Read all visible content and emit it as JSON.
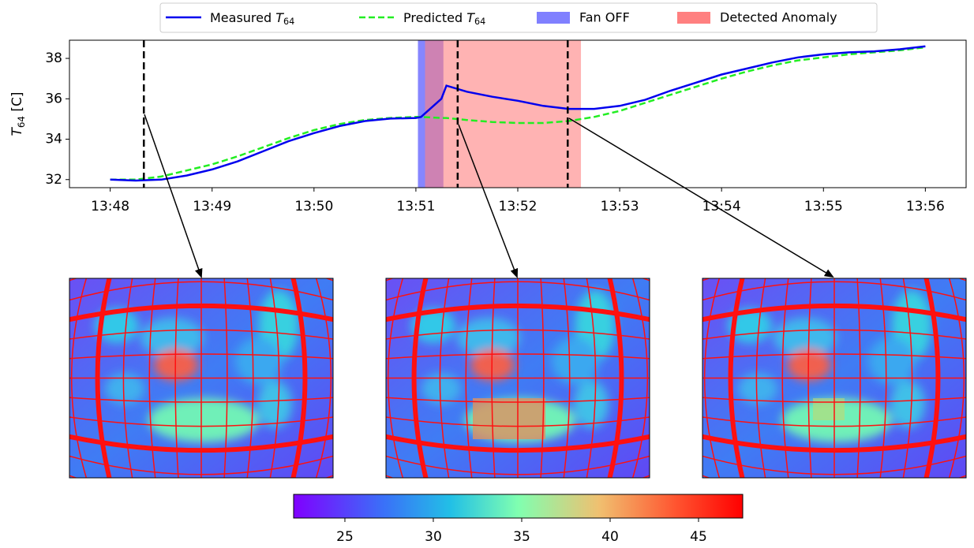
{
  "chart_data": {
    "type": "line",
    "ylabel": "T64 [C]",
    "x": [
      828,
      828.25,
      828.5,
      828.75,
      829,
      829.25,
      829.5,
      829.75,
      830,
      830.25,
      830.5,
      830.75,
      831,
      831.05,
      831.25,
      831.3,
      831.5,
      831.75,
      832,
      832.25,
      832.5,
      832.75,
      833,
      833.25,
      833.5,
      833.75,
      834,
      834.25,
      834.5,
      834.75,
      835,
      835.25,
      835.5,
      835.75,
      836
    ],
    "series": [
      {
        "name": "Measured T64",
        "color": "#0000ee",
        "style": "solid",
        "values": [
          32.0,
          31.95,
          32.0,
          32.2,
          32.5,
          32.9,
          33.4,
          33.9,
          34.3,
          34.65,
          34.9,
          35.02,
          35.05,
          35.1,
          36.0,
          36.65,
          36.35,
          36.1,
          35.9,
          35.65,
          35.5,
          35.5,
          35.65,
          35.95,
          36.4,
          36.8,
          37.2,
          37.5,
          37.8,
          38.05,
          38.2,
          38.3,
          38.35,
          38.45,
          38.6
        ]
      },
      {
        "name": "Predicted T64",
        "color": "#22ee22",
        "style": "dashed",
        "values": [
          32.0,
          32.0,
          32.15,
          32.45,
          32.75,
          33.15,
          33.6,
          34.05,
          34.45,
          34.75,
          34.95,
          35.05,
          35.1,
          35.1,
          35.05,
          35.05,
          34.95,
          34.85,
          34.8,
          34.8,
          34.9,
          35.1,
          35.4,
          35.8,
          36.2,
          36.6,
          37.0,
          37.35,
          37.65,
          37.9,
          38.05,
          38.2,
          38.3,
          38.4,
          38.55
        ]
      }
    ],
    "spans": [
      {
        "name": "Fan OFF",
        "color": "#8080ff",
        "start": 831.02,
        "end": 831.27
      },
      {
        "name": "Detected Anomaly",
        "color": "#ff8080",
        "start": 831.09,
        "end": 832.62
      }
    ],
    "markers": [
      828.33,
      831.41,
      832.49
    ],
    "xlim": [
      827.6,
      836.4
    ],
    "xticks": [
      {
        "value": 828,
        "label": "13:48"
      },
      {
        "value": 829,
        "label": "13:49"
      },
      {
        "value": 830,
        "label": "13:50"
      },
      {
        "value": 831,
        "label": "13:51"
      },
      {
        "value": 832,
        "label": "13:52"
      },
      {
        "value": 833,
        "label": "13:53"
      },
      {
        "value": 834,
        "label": "13:54"
      },
      {
        "value": 835,
        "label": "13:55"
      },
      {
        "value": 836,
        "label": "13:56"
      }
    ],
    "ylim": [
      31.6,
      38.9
    ],
    "yticks": [
      32,
      34,
      36,
      38
    ],
    "colorbar": {
      "clim": [
        22.1,
        47.5
      ],
      "ticks": [
        25,
        30,
        35,
        40,
        45
      ]
    }
  }
}
